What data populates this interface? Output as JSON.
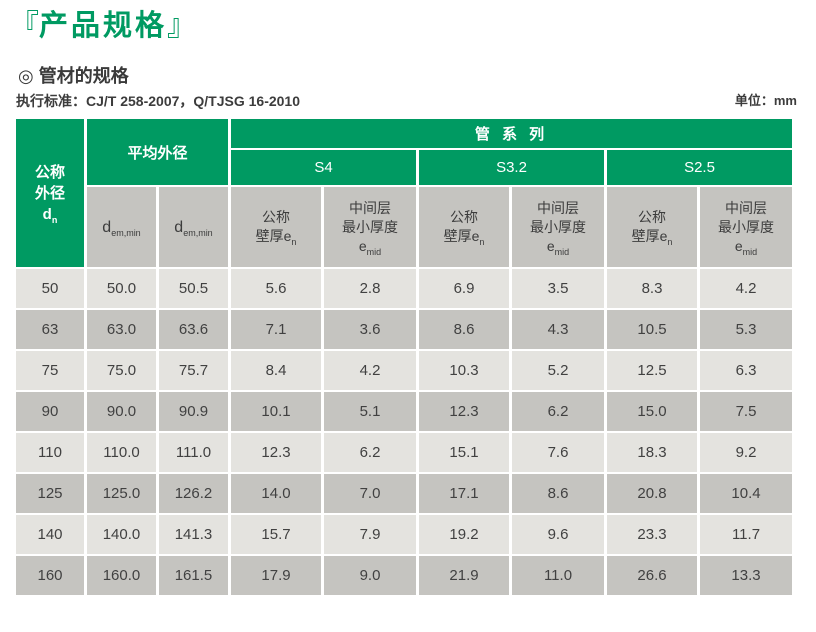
{
  "page": {
    "title_open_bracket": "『",
    "title_text": "产品规格",
    "title_close_bracket": "』",
    "section_title": "◎ 管材的规格",
    "standard_label": "执行标准：",
    "standard_value": "CJ/T 258-2007，Q/TJSG 16-2010",
    "unit_label": "单位：mm"
  },
  "colors": {
    "green": "#009a62",
    "row_light": "#e4e3df",
    "row_dark": "#c5c4c0",
    "header_gray": "#c5c4c0",
    "text_dark": "#3c3c3c"
  },
  "table": {
    "header": {
      "nominal_od_line1": "公称",
      "nominal_od_line2": "外径",
      "nominal_od_symbol": "d",
      "nominal_od_symbol_sub": "n",
      "avg_od": "平均外径",
      "avg_od_subcols": [
        {
          "base": "d",
          "sub": "em,min"
        },
        {
          "base": "d",
          "sub": "em,min"
        }
      ],
      "pipe_series": "管 系 列",
      "series": [
        "S4",
        "S3.2",
        "S2.5"
      ],
      "wall_line1": "公称",
      "wall_line2": "壁厚",
      "wall_symbol": "e",
      "wall_symbol_sub": "n",
      "mid_line1": "中间层",
      "mid_line2": "最小厚度",
      "mid_symbol": "e",
      "mid_symbol_sub": "mid"
    },
    "rows": [
      {
        "dn": "50",
        "values": [
          "50.0",
          "50.5",
          "5.6",
          "2.8",
          "6.9",
          "3.5",
          "8.3",
          "4.2"
        ]
      },
      {
        "dn": "63",
        "values": [
          "63.0",
          "63.6",
          "7.1",
          "3.6",
          "8.6",
          "4.3",
          "10.5",
          "5.3"
        ]
      },
      {
        "dn": "75",
        "values": [
          "75.0",
          "75.7",
          "8.4",
          "4.2",
          "10.3",
          "5.2",
          "12.5",
          "6.3"
        ]
      },
      {
        "dn": "90",
        "values": [
          "90.0",
          "90.9",
          "10.1",
          "5.1",
          "12.3",
          "6.2",
          "15.0",
          "7.5"
        ]
      },
      {
        "dn": "110",
        "values": [
          "110.0",
          "111.0",
          "12.3",
          "6.2",
          "15.1",
          "7.6",
          "18.3",
          "9.2"
        ]
      },
      {
        "dn": "125",
        "values": [
          "125.0",
          "126.2",
          "14.0",
          "7.0",
          "17.1",
          "8.6",
          "20.8",
          "10.4"
        ]
      },
      {
        "dn": "140",
        "values": [
          "140.0",
          "141.3",
          "15.7",
          "7.9",
          "19.2",
          "9.6",
          "23.3",
          "11.7"
        ]
      },
      {
        "dn": "160",
        "values": [
          "160.0",
          "161.5",
          "17.9",
          "9.0",
          "21.9",
          "11.0",
          "26.6",
          "13.3"
        ]
      }
    ]
  }
}
